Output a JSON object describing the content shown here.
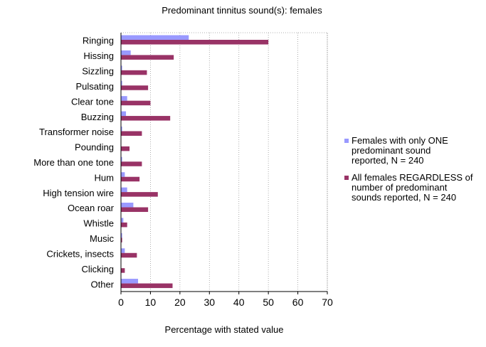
{
  "chart_data": {
    "type": "bar",
    "orientation": "horizontal",
    "title": "Predominant tinnitus sound(s): females",
    "xlabel": "Percentage with stated value",
    "ylabel": "",
    "xlim": [
      0,
      70
    ],
    "xticks": [
      0,
      10,
      20,
      30,
      40,
      50,
      60,
      70
    ],
    "grid": true,
    "legend_position": "right",
    "categories": [
      "Ringing",
      "Hissing",
      "Sizzling",
      "Pulsating",
      "Clear tone",
      "Buzzing",
      "Transformer noise",
      "Pounding",
      "More than one tone",
      "Hum",
      "High tension wire",
      "Ocean roar",
      "Whistle",
      "Music",
      "Crickets, insects",
      "Clicking",
      "Other"
    ],
    "series": [
      {
        "name": "Females with only ONE predominant sound reported, N = 240",
        "legend_lines": [
          "Females with only ONE",
          "predominant sound",
          "reported, N = 240"
        ],
        "color": "#9999ff",
        "values": [
          23,
          3.3,
          0.4,
          0.4,
          2.1,
          1.7,
          0.4,
          0,
          0.4,
          1.3,
          2.1,
          4.2,
          0.8,
          0.4,
          1.3,
          0,
          5.8
        ]
      },
      {
        "name": "All females REGARDLESS of number of predominant sounds reported, N = 240",
        "legend_lines": [
          "All females REGARDLESS of",
          "number of predominant",
          "sounds reported, N = 240"
        ],
        "color": "#993366",
        "values": [
          50,
          17.9,
          8.8,
          9.2,
          10.0,
          16.7,
          7.1,
          2.9,
          7.1,
          6.3,
          12.5,
          9.2,
          2.1,
          0.4,
          5.4,
          1.3,
          17.5
        ]
      }
    ]
  }
}
